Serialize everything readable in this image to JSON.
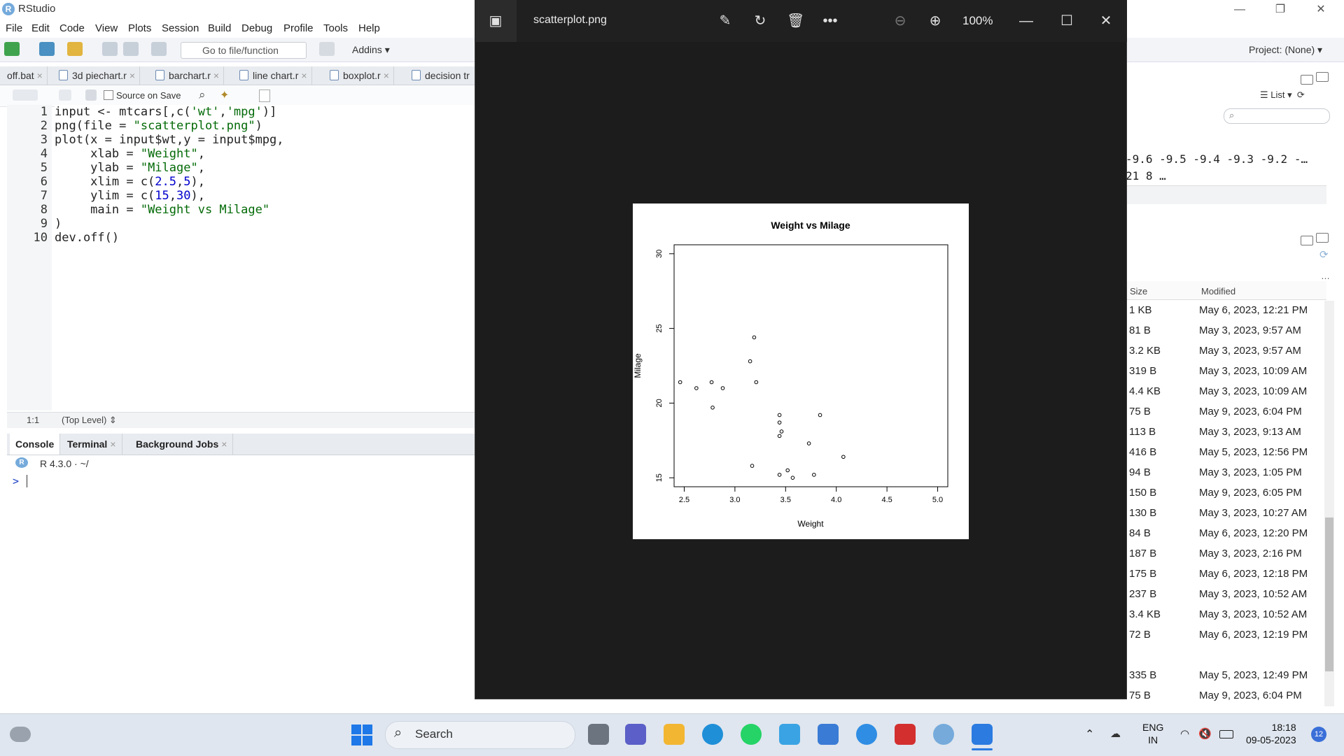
{
  "window": {
    "title": "RStudio"
  },
  "menu": [
    "File",
    "Edit",
    "Code",
    "View",
    "Plots",
    "Session",
    "Build",
    "Debug",
    "Profile",
    "Tools",
    "Help"
  ],
  "toolbar": {
    "goto_placeholder": "Go to file/function",
    "addins": "Addins",
    "project": "Project: (None)"
  },
  "editor": {
    "tabs": [
      {
        "label": "off.bat"
      },
      {
        "label": "3d piechart.r"
      },
      {
        "label": "barchart.r"
      },
      {
        "label": "line chart.r"
      },
      {
        "label": "boxplot.r"
      },
      {
        "label": "decision tr"
      }
    ],
    "source_on_save": "Source on Save",
    "lines": [
      "1",
      "2",
      "3",
      "4",
      "5",
      "6",
      "7",
      "8",
      "9",
      "10"
    ],
    "status_pos": "1:1",
    "status_level": "(Top Level)"
  },
  "console": {
    "tabs": [
      {
        "label": "Console"
      },
      {
        "label": "Terminal"
      },
      {
        "label": "Background Jobs"
      }
    ],
    "r_version": "R 4.3.0 · ~/",
    "prompt": ">"
  },
  "env_pane": {
    "view_mode": "List",
    "values_line1": "-9.6 -9.5 -9.4 -9.3 -9.2 -…",
    "values_line2": "21 8 …"
  },
  "files_pane": {
    "col_size": "Size",
    "col_modified": "Modified",
    "rows": [
      {
        "size": "1 KB",
        "modified": "May 6, 2023, 12:21 PM"
      },
      {
        "size": "81 B",
        "modified": "May 3, 2023, 9:57 AM"
      },
      {
        "size": "3.2 KB",
        "modified": "May 3, 2023, 9:57 AM"
      },
      {
        "size": "319 B",
        "modified": "May 3, 2023, 10:09 AM"
      },
      {
        "size": "4.4 KB",
        "modified": "May 3, 2023, 10:09 AM"
      },
      {
        "size": "75 B",
        "modified": "May 9, 2023, 6:04 PM"
      },
      {
        "size": "113 B",
        "modified": "May 3, 2023, 9:13 AM"
      },
      {
        "size": "416 B",
        "modified": "May 5, 2023, 12:56 PM"
      },
      {
        "size": "94 B",
        "modified": "May 3, 2023, 1:05 PM"
      },
      {
        "size": "150 B",
        "modified": "May 9, 2023, 6:05 PM"
      },
      {
        "size": "130 B",
        "modified": "May 3, 2023, 10:27 AM"
      },
      {
        "size": "84 B",
        "modified": "May 6, 2023, 12:20 PM"
      },
      {
        "size": "187 B",
        "modified": "May 3, 2023, 2:16 PM"
      },
      {
        "size": "175 B",
        "modified": "May 6, 2023, 12:18 PM"
      },
      {
        "size": "237 B",
        "modified": "May 3, 2023, 10:52 AM"
      },
      {
        "size": "3.4 KB",
        "modified": "May 3, 2023, 10:52 AM"
      },
      {
        "size": "72 B",
        "modified": "May 6, 2023, 12:19 PM"
      },
      {
        "size": "335 B",
        "modified": "May 5, 2023, 12:49 PM"
      },
      {
        "size": "75 B",
        "modified": "May 9, 2023, 6:04 PM"
      }
    ]
  },
  "viewer": {
    "filename": "scatterplot.png",
    "zoom": "100%"
  },
  "chart_data": {
    "type": "scatter",
    "title": "Weight vs Milage",
    "xlabel": "Weight",
    "ylabel": "Milage",
    "xlim": [
      2.5,
      5
    ],
    "ylim": [
      15,
      30
    ],
    "x_ticks": [
      "2.5",
      "3.0",
      "3.5",
      "4.0",
      "4.5",
      "5.0"
    ],
    "y_ticks": [
      "15",
      "20",
      "25",
      "30"
    ],
    "points": [
      [
        2.46,
        21.4
      ],
      [
        2.62,
        21.0
      ],
      [
        2.78,
        19.7
      ],
      [
        2.77,
        21.4
      ],
      [
        2.88,
        21.0
      ],
      [
        3.15,
        22.8
      ],
      [
        3.19,
        24.4
      ],
      [
        3.21,
        21.4
      ],
      [
        3.17,
        15.8
      ],
      [
        3.44,
        19.2
      ],
      [
        3.44,
        18.7
      ],
      [
        3.44,
        17.8
      ],
      [
        3.46,
        18.1
      ],
      [
        3.44,
        15.2
      ],
      [
        3.52,
        15.5
      ],
      [
        3.57,
        15.0
      ],
      [
        3.73,
        17.3
      ],
      [
        3.78,
        15.2
      ],
      [
        3.84,
        19.2
      ],
      [
        4.07,
        16.4
      ]
    ]
  },
  "taskbar": {
    "search": "Search",
    "lang_1": "ENG",
    "lang_2": "IN",
    "time": "18:18",
    "date": "09-05-2023",
    "notifications": "12"
  },
  "colors": {
    "rstudio_blue": "#75aadb",
    "viewer_bg": "#1c1c1c",
    "taskbar_bg": "#dfe6ef"
  }
}
